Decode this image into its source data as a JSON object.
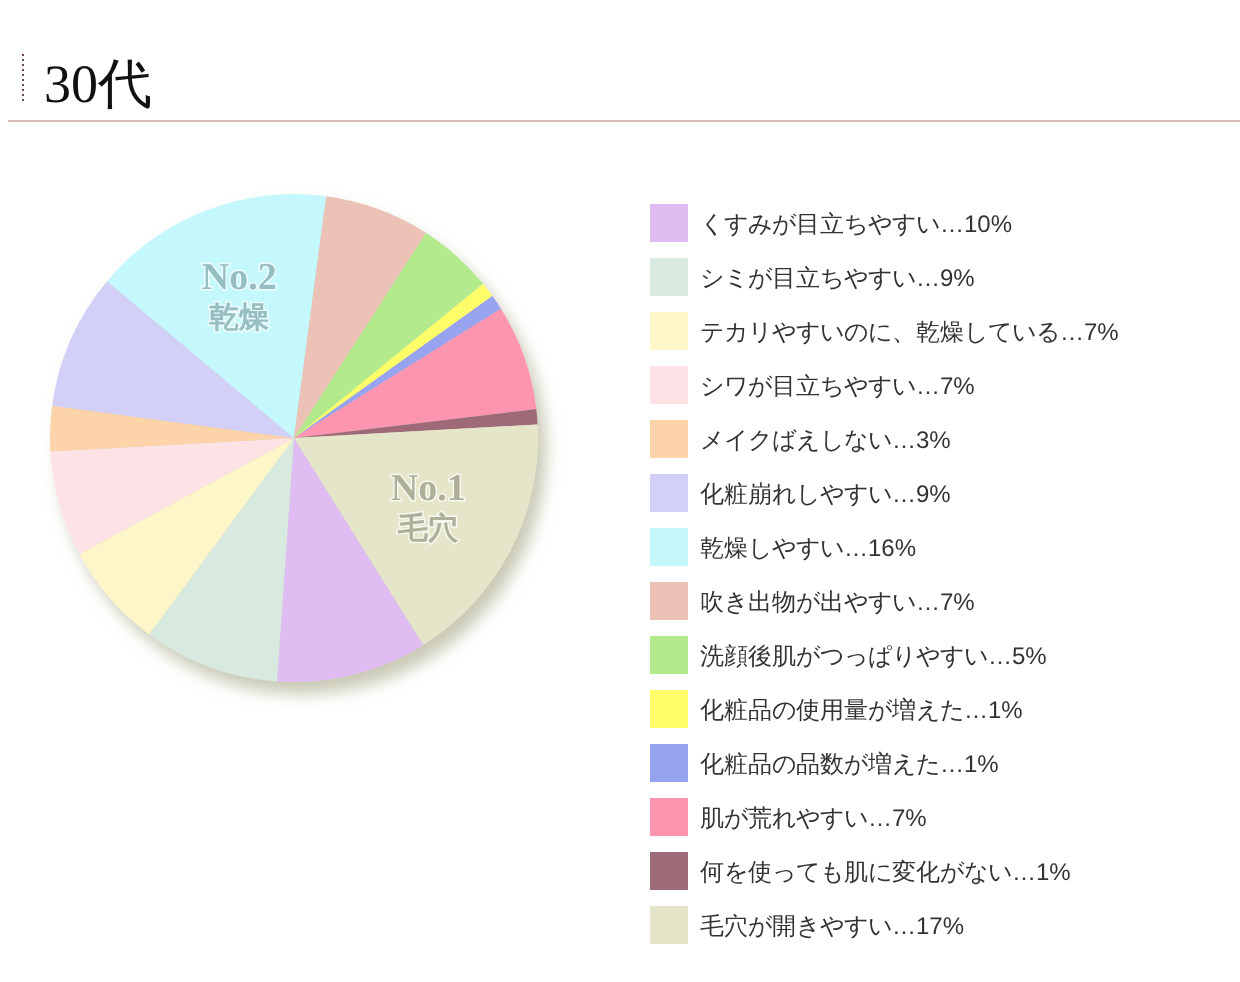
{
  "chart_data": {
    "type": "pie",
    "title": "30代",
    "categories": [
      "くすみが目立ちやすい…10%",
      "シミが目立ちやすい…9%",
      "テカリやすいのに、乾燥している…7%",
      "シワが目立ちやすい…7%",
      "メイクばえしない…3%",
      "化粧崩れしやすい…9%",
      "乾燥しやすい…16%",
      "吹き出物が出やすい…7%",
      "洗顔後肌がつっぱりやすい…5%",
      "化粧品の使用量が増えた…1%",
      "化粧品の品数が増えた…1%",
      "肌が荒れやすい…7%",
      "何を使っても肌に変化がない…1%",
      "毛穴が開きやすい…17%"
    ],
    "values": [
      10,
      9,
      7,
      7,
      3,
      9,
      16,
      7,
      5,
      1,
      1,
      7,
      1,
      17
    ],
    "colors": [
      "#dfbdf2",
      "#d8e9df",
      "#fdf6c8",
      "#fde3e6",
      "#fdd3a9",
      "#d2d0f6",
      "#c4f8fc",
      "#ecc2b6",
      "#b2ea8c",
      "#fdfd6a",
      "#97a3ee",
      "#fd94b0",
      "#9e6b78",
      "#e5e6c9"
    ],
    "legend": "right",
    "annotations": [
      "No.1 毛穴",
      "No.2 乾燥"
    ]
  }
}
